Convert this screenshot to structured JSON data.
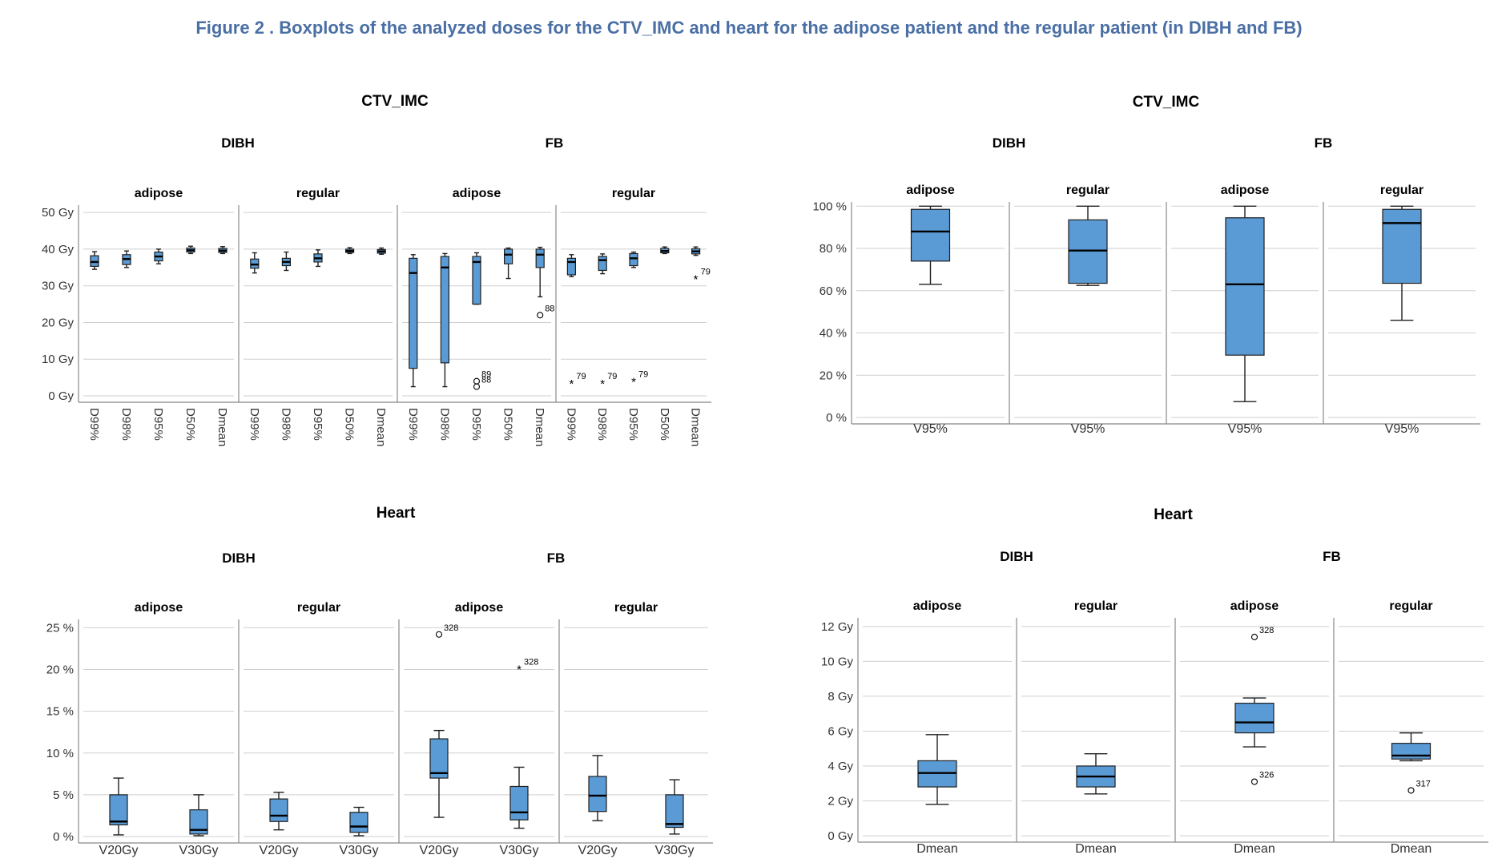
{
  "figure_title": "Figure 2 . Boxplots of the analyzed doses for the CTV_IMC and heart for the adipose patient and the regular patient (in DIBH and FB)",
  "colors": {
    "box_fill": "#5b9bd5",
    "box_stroke": "#1f1f1f",
    "grid": "#cfcfcf",
    "title": "#4a6fa5"
  },
  "chart_data": [
    {
      "type": "boxplot",
      "title": "CTV_IMC",
      "groups": [
        "DIBH",
        "FB"
      ],
      "panels": [
        "adipose",
        "regular",
        "adipose",
        "regular"
      ],
      "categories": [
        "D99%",
        "D98%",
        "D95%",
        "D50%",
        "Dmean"
      ],
      "ylim": [
        0,
        52
      ],
      "yticks": [
        0,
        10,
        20,
        30,
        40,
        50
      ],
      "ytick_labels": [
        "0 Gy",
        "10 Gy",
        "20 Gy",
        "30 Gy",
        "40 Gy",
        "50 Gy"
      ],
      "grid": true,
      "boxes": [
        [
          [
            34.5,
            35.3,
            36.5,
            38.2,
            39.3
          ],
          [
            35,
            35.8,
            37.3,
            38.5,
            39.5
          ],
          [
            36,
            36.8,
            38,
            39.2,
            40
          ],
          [
            38.8,
            39.2,
            39.7,
            40.3,
            40.8
          ],
          [
            38.8,
            39.1,
            39.6,
            40.2,
            40.7
          ]
        ],
        [
          [
            33.5,
            34.8,
            35.8,
            37.3,
            39
          ],
          [
            34.2,
            35.5,
            36.5,
            37.5,
            39.2
          ],
          [
            35.3,
            36.5,
            37.5,
            38.7,
            39.8
          ],
          [
            38.8,
            39.1,
            39.5,
            40,
            40.4
          ],
          [
            38.6,
            38.9,
            39.4,
            39.9,
            40.3
          ]
        ],
        [
          [
            2.5,
            7.5,
            33.5,
            37.5,
            38.5
          ],
          [
            2.5,
            9,
            35,
            38,
            38.8
          ],
          [
            25,
            25,
            36.5,
            38,
            39
          ],
          [
            32,
            36,
            38.5,
            40,
            40.3
          ],
          [
            27,
            35,
            38.5,
            40,
            40.5
          ]
        ],
        [
          [
            32.5,
            33,
            36.5,
            37.5,
            38.5
          ],
          [
            33.3,
            34.2,
            37,
            38,
            38.7
          ],
          [
            35,
            35.5,
            37.5,
            38.8,
            39.2
          ],
          [
            38.8,
            39,
            39.5,
            40.2,
            40.6
          ],
          [
            38.3,
            38.7,
            39.4,
            40.1,
            40.6
          ]
        ]
      ],
      "outliers": [
        [],
        [],
        [
          {
            "x": "D95%",
            "value": 4,
            "label": "89",
            "marker": "circle"
          },
          {
            "x": "D95%",
            "value": 2.5,
            "label": "88",
            "marker": "circle"
          },
          {
            "x": "Dmean",
            "value": 22,
            "label": "88",
            "marker": "circle"
          }
        ],
        [
          {
            "x": "D99%",
            "value": 3.5,
            "label": "79",
            "marker": "star"
          },
          {
            "x": "D98%",
            "value": 3.5,
            "label": "79",
            "marker": "star"
          },
          {
            "x": "D95%",
            "value": 4,
            "label": "79",
            "marker": "star"
          },
          {
            "x": "Dmean",
            "value": 32,
            "label": "79",
            "marker": "star"
          }
        ]
      ]
    },
    {
      "type": "boxplot",
      "title": "CTV_IMC",
      "groups": [
        "DIBH",
        "FB"
      ],
      "panels": [
        "adipose",
        "regular",
        "adipose",
        "regular"
      ],
      "categories": [
        "V95%"
      ],
      "ylim": [
        0,
        102
      ],
      "yticks": [
        0,
        20,
        40,
        60,
        80,
        100
      ],
      "ytick_labels": [
        "0 %",
        "20 %",
        "40 %",
        "60 %",
        "80 %",
        "100 %"
      ],
      "grid": true,
      "boxes": [
        [
          [
            63,
            74,
            88,
            98.5,
            100
          ]
        ],
        [
          [
            62.5,
            63.5,
            79,
            93.5,
            100
          ]
        ],
        [
          [
            7.5,
            29.5,
            63,
            94.5,
            100
          ]
        ],
        [
          [
            46,
            63.5,
            92,
            98.5,
            100
          ]
        ]
      ],
      "outliers": [
        [],
        [],
        [],
        []
      ]
    },
    {
      "type": "boxplot",
      "title": "Heart",
      "groups": [
        "DIBH",
        "FB"
      ],
      "panels": [
        "adipose",
        "regular",
        "adipose",
        "regular"
      ],
      "categories": [
        "V20Gy",
        "V30Gy"
      ],
      "ylim": [
        0,
        26
      ],
      "yticks": [
        0,
        5,
        10,
        15,
        20,
        25
      ],
      "ytick_labels": [
        "0 %",
        "5 %",
        "10 %",
        "15 %",
        "20 %",
        "25 %"
      ],
      "grid": true,
      "boxes": [
        [
          [
            0.2,
            1.4,
            1.8,
            5,
            7
          ],
          [
            0.1,
            0.3,
            0.8,
            3.2,
            5
          ]
        ],
        [
          [
            0.8,
            1.8,
            2.5,
            4.5,
            5.3
          ],
          [
            0.1,
            0.5,
            1.2,
            2.9,
            3.5
          ]
        ],
        [
          [
            2.3,
            7,
            7.6,
            11.7,
            12.7
          ],
          [
            1,
            2,
            2.9,
            6,
            8.3
          ]
        ],
        [
          [
            1.9,
            3,
            4.9,
            7.2,
            9.7
          ],
          [
            0.3,
            1.1,
            1.5,
            5,
            6.8
          ]
        ]
      ],
      "outliers": [
        [],
        [],
        [
          {
            "x": "V20Gy",
            "value": 24.2,
            "label": "328",
            "marker": "circle"
          },
          {
            "x": "V30Gy",
            "value": 20.1,
            "label": "328",
            "marker": "star"
          }
        ],
        []
      ]
    },
    {
      "type": "boxplot",
      "title": "Heart",
      "groups": [
        "DIBH",
        "FB"
      ],
      "panels": [
        "adipose",
        "regular",
        "adipose",
        "regular"
      ],
      "categories": [
        "Dmean"
      ],
      "ylim": [
        0,
        12.5
      ],
      "yticks": [
        0,
        2,
        4,
        6,
        8,
        10,
        12
      ],
      "ytick_labels": [
        "0 Gy",
        "2 Gy",
        "4 Gy",
        "6 Gy",
        "8 Gy",
        "10 Gy",
        "12 Gy"
      ],
      "grid": true,
      "boxes": [
        [
          [
            1.8,
            2.8,
            3.6,
            4.3,
            5.8
          ]
        ],
        [
          [
            2.4,
            2.8,
            3.4,
            4,
            4.7
          ]
        ],
        [
          [
            5.1,
            5.9,
            6.5,
            7.6,
            7.9
          ]
        ],
        [
          [
            4.3,
            4.4,
            4.6,
            5.3,
            5.9
          ]
        ]
      ],
      "outliers": [
        [],
        [],
        [
          {
            "x": "Dmean",
            "value": 11.4,
            "label": "328",
            "marker": "circle"
          },
          {
            "x": "Dmean",
            "value": 3.1,
            "label": "326",
            "marker": "circle"
          }
        ],
        [
          {
            "x": "Dmean",
            "value": 2.6,
            "label": "317",
            "marker": "circle"
          }
        ]
      ]
    }
  ]
}
